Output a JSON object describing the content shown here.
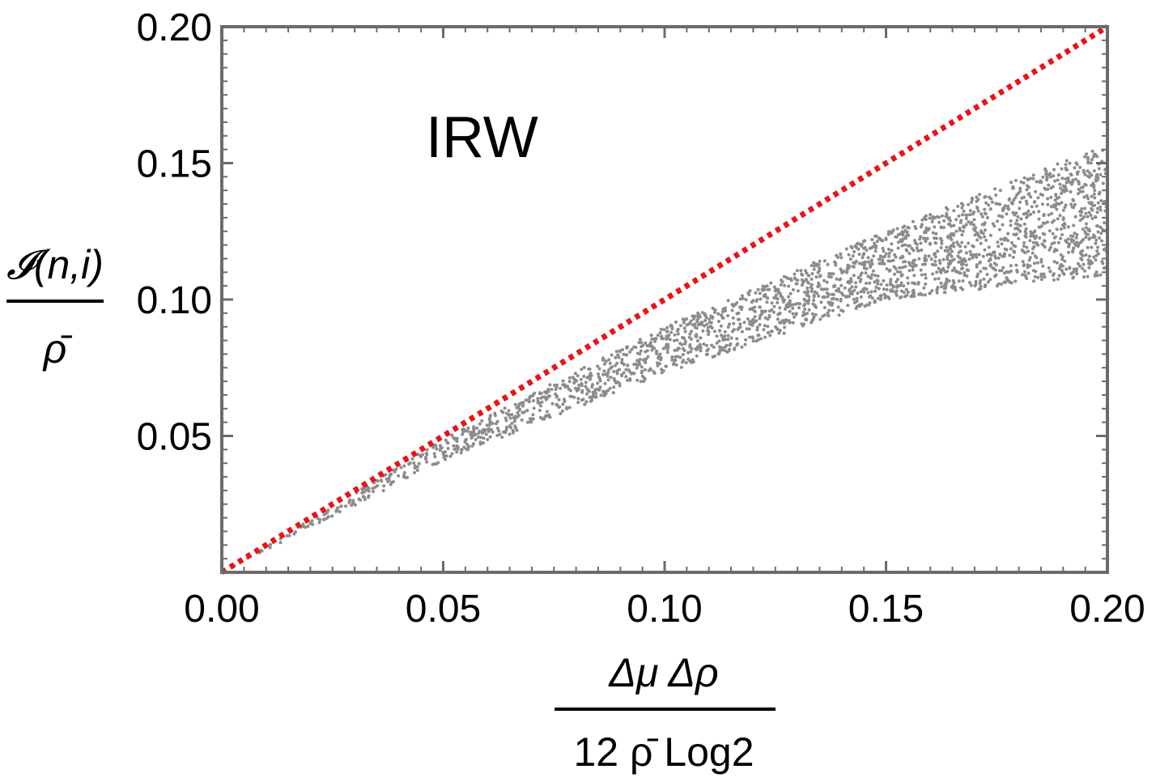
{
  "chart_data": {
    "type": "scatter",
    "annotation": "IRW",
    "xlim": [
      0.0,
      0.2
    ],
    "ylim": [
      0.0,
      0.2
    ],
    "x_ticks": [
      "0.00",
      "0.05",
      "0.10",
      "0.15",
      "0.20"
    ],
    "x_tick_values": [
      0.0,
      0.05,
      0.1,
      0.15,
      0.2
    ],
    "y_ticks": [
      "0.05",
      "0.10",
      "0.15",
      "0.20"
    ],
    "y_tick_values": [
      0.05,
      0.1,
      0.15,
      0.2
    ],
    "xlabel": {
      "numerator": "Δμ Δρ",
      "denominator": "12 ρ̄ Log2"
    },
    "ylabel": {
      "numerator": "𝓘(n,i)",
      "denominator": "ρ̄"
    },
    "series": [
      {
        "name": "reference line y = x",
        "style": "dotted",
        "color": "#e8141a",
        "x": [
          0.0,
          0.2
        ],
        "y": [
          0.0,
          0.2
        ]
      },
      {
        "name": "samples",
        "style": "points",
        "color": "#8c8c8c",
        "count": 2400,
        "description_envelope": {
          "x": [
            0.0,
            0.05,
            0.1,
            0.15,
            0.2
          ],
          "y_lower": [
            0.0,
            0.041,
            0.073,
            0.1,
            0.109
          ],
          "y_upper": [
            0.0,
            0.049,
            0.09,
            0.125,
            0.157
          ]
        }
      }
    ],
    "colors": {
      "frame": "#6b6b6b",
      "reference": "#e8141a",
      "points": "#8c8c8c"
    }
  }
}
